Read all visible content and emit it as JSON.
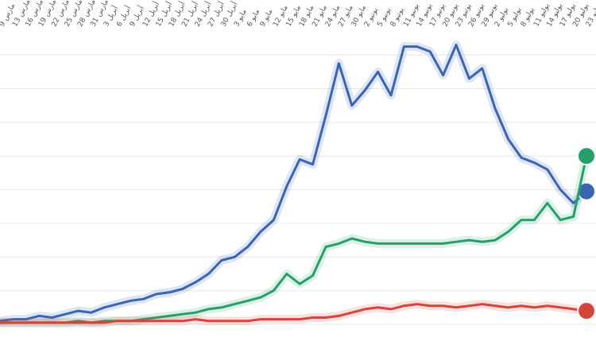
{
  "chart_data": {
    "type": "line",
    "x": [
      "مارس 9",
      "مارس 13",
      "مارس 16",
      "مارس 19",
      "مارس 22",
      "مارس 25",
      "مارس 28",
      "مارس 31",
      "أبريل 3",
      "أبريل 6",
      "أبريل 9",
      "أبريل 12",
      "أبريل 15",
      "أبريل 18",
      "أبريل 21",
      "أبريل 24",
      "أبريل 27",
      "أبريل 30",
      "مايو 3",
      "مايو 6",
      "مايو 9",
      "مايو 12",
      "مايو 15",
      "مايو 18",
      "مايو 21",
      "مايو 24",
      "مايو 27",
      "مايو 30",
      "يونيو 2",
      "يونيو 5",
      "يونيو 8",
      "يونيو 11",
      "يونيو 14",
      "يونيو 17",
      "يونيو 20",
      "يونيو 23",
      "يونيو 26",
      "يونيو 29",
      "يوليو 2",
      "يوليو 5",
      "يوليو 8",
      "يوليو 11",
      "يوليو 14",
      "يوليو 17",
      "يوليو 20",
      "يوليو 23"
    ],
    "series": [
      {
        "color": "#3a64b4",
        "values": [
          2,
          3,
          3,
          5,
          4,
          6,
          8,
          7,
          10,
          12,
          14,
          15,
          18,
          19,
          21,
          25,
          30,
          38,
          40,
          46,
          55,
          62,
          82,
          98,
          95,
          124,
          155,
          130,
          139,
          150,
          136,
          165,
          165,
          162,
          148,
          166,
          146,
          152,
          128,
          110,
          99,
          96,
          92,
          80,
          72,
          79
        ]
      },
      {
        "color": "#24a06b",
        "values": [
          1,
          1,
          1,
          1,
          1,
          1,
          2,
          1,
          2,
          2,
          2,
          3,
          4,
          5,
          6,
          7,
          9,
          10,
          12,
          14,
          16,
          20,
          30,
          24,
          29,
          46,
          48,
          51,
          49,
          48,
          48,
          48,
          48,
          48,
          48,
          49,
          50,
          49,
          50,
          55,
          62,
          62,
          72,
          62,
          64,
          100
        ]
      },
      {
        "color": "#d4453a",
        "values": [
          1,
          1,
          1,
          1,
          1,
          1,
          1,
          1,
          1,
          2,
          2,
          2,
          2,
          2,
          2,
          3,
          2,
          2,
          2,
          2,
          3,
          3,
          3,
          3,
          4,
          4,
          5,
          7,
          9,
          10,
          9,
          11,
          12,
          11,
          11,
          10,
          11,
          12,
          11,
          10,
          11,
          10,
          11,
          10,
          9,
          8
        ]
      }
    ],
    "ylim": [
      0,
      170
    ],
    "grid": true
  }
}
